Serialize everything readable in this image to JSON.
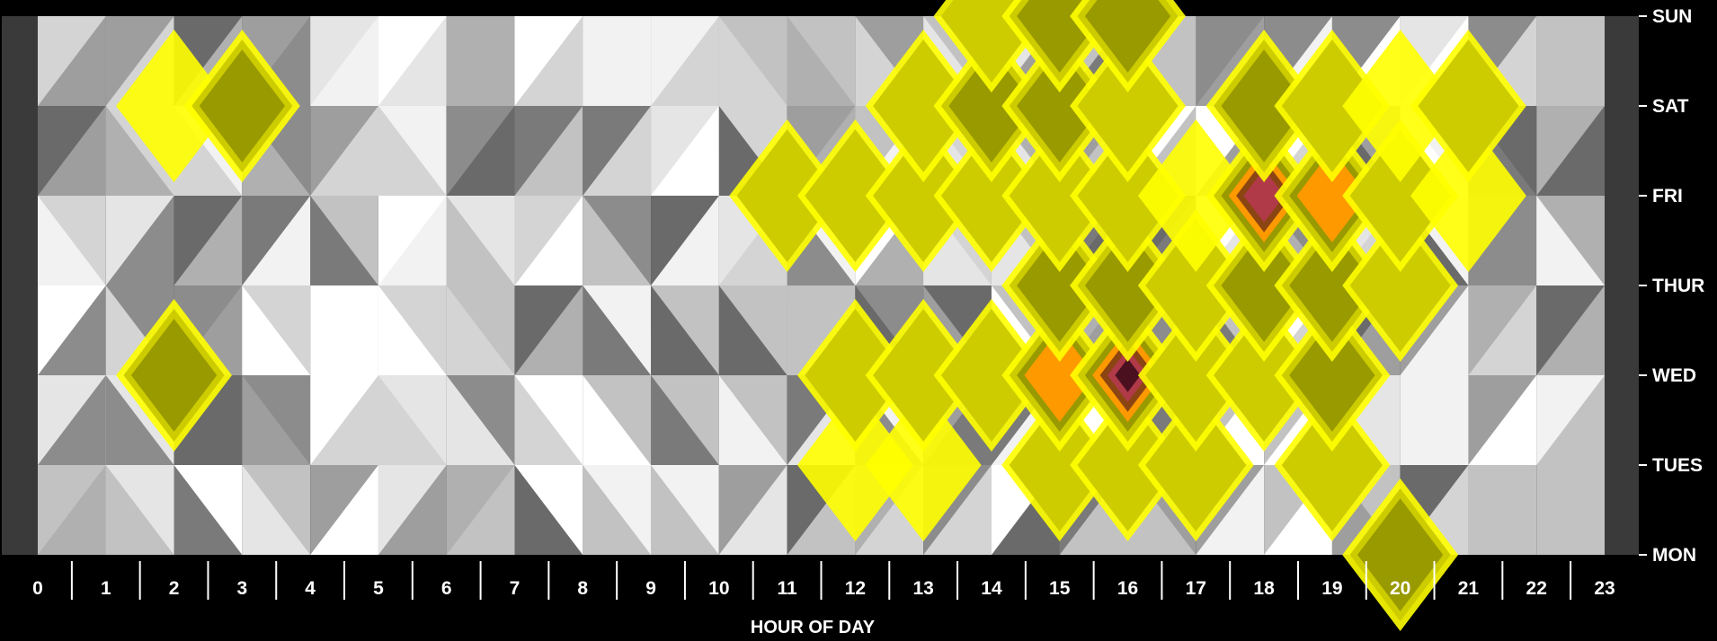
{
  "chart_data": {
    "type": "heatmap",
    "title": "",
    "xlabel": "HOUR OF DAY",
    "ylabel": "",
    "x": [
      "0",
      "1",
      "2",
      "3",
      "4",
      "5",
      "6",
      "7",
      "8",
      "9",
      "10",
      "11",
      "12",
      "13",
      "14",
      "15",
      "16",
      "17",
      "18",
      "19",
      "20",
      "21",
      "22",
      "23"
    ],
    "y": [
      "MON",
      "TUES",
      "WED",
      "THUR",
      "FRI",
      "SAT",
      "SUN"
    ],
    "z": [
      [
        0.1,
        0.15,
        0.2,
        0.2,
        0.0,
        0.05,
        0.15,
        0.2,
        0.15,
        0.05,
        0.2,
        0.1,
        0.25,
        0.35,
        0.3,
        0.1,
        0.05,
        0.15,
        0.3,
        0.3,
        0.75,
        0.1,
        0.05,
        0.0
      ],
      [
        0.2,
        0.25,
        0.3,
        0.2,
        0.1,
        0.3,
        0.4,
        0.35,
        0.2,
        0.35,
        0.3,
        0.35,
        0.55,
        0.5,
        0.45,
        0.6,
        0.7,
        0.65,
        0.45,
        0.7,
        0.3,
        0.2,
        0.1,
        0.05
      ],
      [
        0.05,
        0.1,
        0.75,
        0.35,
        0.05,
        0.1,
        0.3,
        0.3,
        0.15,
        0.2,
        0.25,
        0.4,
        0.7,
        0.6,
        0.7,
        1.1,
        1.8,
        0.7,
        0.65,
        0.75,
        0.35,
        0.1,
        0.0,
        0.15
      ],
      [
        0.05,
        0.1,
        0.2,
        0.25,
        0.3,
        0.1,
        0.15,
        0.2,
        0.2,
        0.3,
        0.4,
        0.45,
        0.3,
        0.15,
        0.45,
        0.9,
        0.75,
        0.65,
        0.95,
        0.8,
        0.7,
        0.4,
        0.15,
        0.05
      ],
      [
        0.0,
        0.05,
        0.1,
        0.15,
        0.05,
        0.25,
        0.1,
        0.05,
        0.1,
        0.3,
        0.45,
        0.6,
        0.6,
        0.6,
        0.7,
        0.7,
        0.65,
        0.55,
        1.5,
        1.0,
        0.6,
        0.55,
        0.1,
        0.1
      ],
      [
        0.2,
        0.2,
        0.5,
        0.9,
        0.1,
        0.15,
        0.15,
        0.2,
        0.1,
        0.15,
        0.15,
        0.1,
        0.35,
        0.6,
        0.75,
        0.9,
        0.7,
        0.2,
        0.8,
        0.65,
        0.5,
        0.6,
        0.3,
        0.2
      ],
      [
        0.05,
        0.1,
        0.15,
        0.05,
        0.15,
        0.25,
        0.2,
        0.1,
        0.15,
        0.2,
        0.3,
        0.25,
        0.2,
        0.3,
        0.6,
        0.9,
        0.8,
        0.3,
        0.35,
        0.2,
        0.1,
        0.2,
        0.1,
        0.05
      ]
    ],
    "levels": [
      0,
      0.5,
      1.0,
      1.25,
      1.5,
      1.75
    ],
    "colors": {
      "gray_shades": [
        "#ffffff",
        "#f2f2f2",
        "#e5e5e5",
        "#d4d4d4",
        "#c2c2c2",
        "#b0b0b0",
        "#9e9e9e",
        "#8c8c8c",
        "#7a7a7a",
        "#6a6a6a"
      ],
      "bands": [
        "#ffff00",
        "#cccc00",
        "#999900",
        "#ff9900",
        "#8b4513",
        "#b03a48",
        "#4a1020"
      ],
      "background": "#000000",
      "side_strip": "#3a3a3a",
      "text": "#ffffff"
    },
    "grid": true,
    "legend": "none"
  }
}
